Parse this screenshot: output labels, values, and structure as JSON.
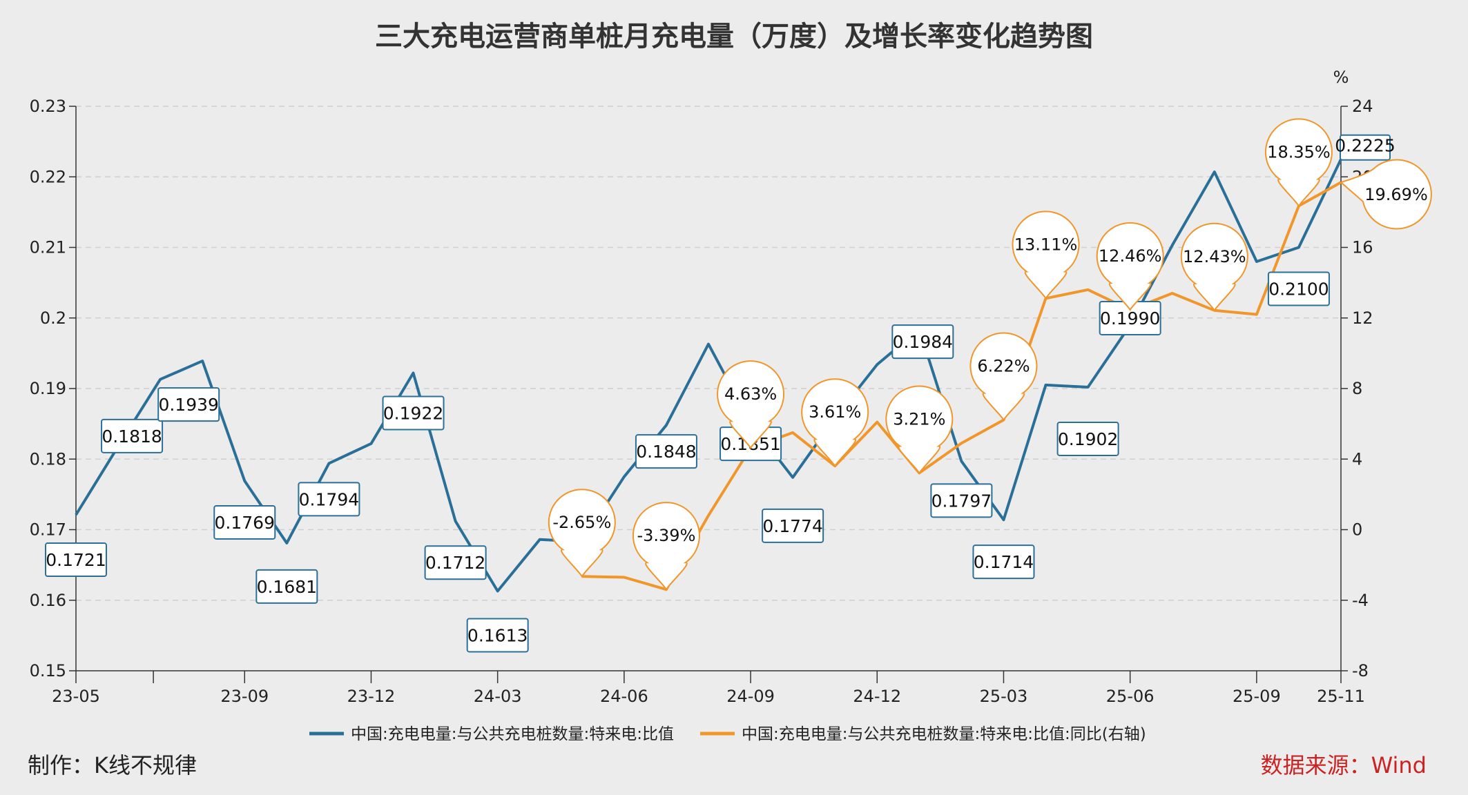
{
  "title": "三大充电运营商单桩月充电量（万度）及增长率变化趋势图",
  "footer": {
    "made_by": "制作：K线不规律",
    "source": "数据来源：Wind"
  },
  "colors": {
    "primary": "#2a6f97",
    "secondary": "#f0962a",
    "background": "#ececec",
    "source_text": "#cc2222"
  },
  "chart_data": {
    "type": "line",
    "x_tick_labels": [
      "23-05",
      "23-09",
      "23-12",
      "24-03",
      "24-06",
      "24-09",
      "24-12",
      "25-03",
      "25-06",
      "25-09",
      "25-11"
    ],
    "left_axis": {
      "range": [
        0.15,
        0.23
      ],
      "ticks": [
        "0.15",
        "0.16",
        "0.17",
        "0.18",
        "0.19",
        "0.2",
        "0.21",
        "0.22",
        "0.23"
      ]
    },
    "right_axis": {
      "unit": "%",
      "range": [
        -8,
        24
      ],
      "ticks": [
        "-8",
        "-4",
        "0",
        "4",
        "8",
        "12",
        "16",
        "20",
        "24"
      ]
    },
    "grid": "horizontal dashed",
    "legend_position": "bottom",
    "series": [
      {
        "name": "中国:充电电量:与公共充电桩数量:特来电:比值",
        "axis": "left",
        "points": [
          [
            "2023-05",
            0.1721
          ],
          [
            "2023-06",
            0.1818
          ],
          [
            "2023-07",
            0.1913
          ],
          [
            "2023-08",
            0.1939
          ],
          [
            "2023-09",
            0.1769
          ],
          [
            "2023-10",
            0.1681
          ],
          [
            "2023-11",
            0.1794
          ],
          [
            "2023-12",
            0.1822
          ],
          [
            "2024-01",
            0.1922
          ],
          [
            "2024-02",
            0.1712
          ],
          [
            "2024-03",
            0.1613
          ],
          [
            "2024-04",
            0.1686
          ],
          [
            "2024-05",
            0.1683
          ],
          [
            "2024-06",
            0.1775
          ],
          [
            "2024-07",
            0.1848
          ],
          [
            "2024-08",
            0.1963
          ],
          [
            "2024-09",
            0.1851
          ],
          [
            "2024-10",
            0.1774
          ],
          [
            "2024-11",
            0.1858
          ],
          [
            "2024-12",
            0.1934
          ],
          [
            "2025-01",
            0.1984
          ],
          [
            "2025-02",
            0.1797
          ],
          [
            "2025-03",
            0.1714
          ],
          [
            "2025-04",
            0.1905
          ],
          [
            "2025-05",
            0.1902
          ],
          [
            "2025-06",
            0.199
          ],
          [
            "2025-07",
            0.2103
          ],
          [
            "2025-08",
            0.2207
          ],
          [
            "2025-09",
            0.208
          ],
          [
            "2025-10",
            0.21
          ],
          [
            "2025-11",
            0.2225
          ]
        ],
        "labels": [
          [
            "2023-05",
            "0.1721"
          ],
          [
            "2023-06",
            "0.1818"
          ],
          [
            "2023-08",
            "0.1939"
          ],
          [
            "2023-09",
            "0.1769"
          ],
          [
            "2023-10",
            "0.1681"
          ],
          [
            "2023-11",
            "0.1794"
          ],
          [
            "2024-01",
            "0.1922"
          ],
          [
            "2024-02",
            "0.1712"
          ],
          [
            "2024-03",
            "0.1613"
          ],
          [
            "2024-07",
            "0.1848"
          ],
          [
            "2024-09",
            "0.1851"
          ],
          [
            "2024-10",
            "0.1774"
          ],
          [
            "2025-01",
            "0.1984"
          ],
          [
            "2025-02",
            "0.1797"
          ],
          [
            "2025-03",
            "0.1714"
          ],
          [
            "2025-05",
            "0.1902"
          ],
          [
            "2025-06",
            "0.1990"
          ],
          [
            "2025-10",
            "0.2100"
          ],
          [
            "2025-11",
            "0.2225"
          ]
        ]
      },
      {
        "name": "中国:充电电量:与公共充电桩数量:特来电:比值:同比(右轴)",
        "axis": "right",
        "points": [
          [
            "2024-05",
            -2.65
          ],
          [
            "2024-06",
            -2.7
          ],
          [
            "2024-07",
            -3.39
          ],
          [
            "2024-08",
            0.8
          ],
          [
            "2024-09",
            4.63
          ],
          [
            "2024-10",
            5.5
          ],
          [
            "2024-11",
            3.61
          ],
          [
            "2024-12",
            6.1
          ],
          [
            "2025-01",
            3.21
          ],
          [
            "2025-02",
            4.9
          ],
          [
            "2025-03",
            6.22
          ],
          [
            "2025-04",
            13.11
          ],
          [
            "2025-05",
            13.6
          ],
          [
            "2025-06",
            12.46
          ],
          [
            "2025-07",
            13.4
          ],
          [
            "2025-08",
            12.43
          ],
          [
            "2025-09",
            12.2
          ],
          [
            "2025-10",
            18.35
          ],
          [
            "2025-11",
            19.69
          ]
        ],
        "labels": [
          [
            "2024-05",
            "-2.65%"
          ],
          [
            "2024-07",
            "-3.39%"
          ],
          [
            "2024-09",
            "4.63%"
          ],
          [
            "2024-11",
            "3.61%"
          ],
          [
            "2025-01",
            "3.21%"
          ],
          [
            "2025-03",
            "6.22%"
          ],
          [
            "2025-04",
            "13.11%"
          ],
          [
            "2025-06",
            "12.46%"
          ],
          [
            "2025-08",
            "12.43%"
          ],
          [
            "2025-10",
            "18.35%"
          ],
          [
            "2025-11",
            "19.69%"
          ]
        ]
      }
    ]
  }
}
